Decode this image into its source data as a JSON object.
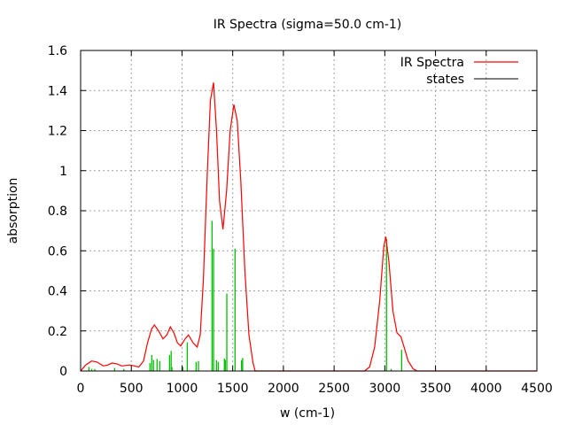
{
  "chart_data": {
    "type": "line",
    "title": "IR Spectra (sigma=50.0 cm-1)",
    "xlabel": "w (cm-1)",
    "ylabel": "absorption",
    "xlim": [
      0,
      4500
    ],
    "ylim": [
      0,
      1.6
    ],
    "xticks": [
      0,
      500,
      1000,
      1500,
      2000,
      2500,
      3000,
      3500,
      4000,
      4500
    ],
    "yticks": [
      0,
      0.2,
      0.4,
      0.6,
      0.8,
      1,
      1.2,
      1.4,
      1.6
    ],
    "ytick_labels": [
      "0",
      "0.2",
      "0.4",
      "0.6",
      "0.8",
      "1",
      "1.2",
      "1.4",
      "1.6"
    ],
    "grid": true,
    "legend_position": "top-right",
    "series": [
      {
        "name": "IR Spectra",
        "kind": "line",
        "color": "#ff0000",
        "x": [
          0,
          50,
          108,
          160,
          224,
          270,
          312,
          360,
          406,
          450,
          486,
          530,
          574,
          620,
          660,
          700,
          728,
          770,
          813,
          850,
          885,
          920,
          955,
          987,
          1030,
          1063,
          1110,
          1150,
          1180,
          1210,
          1250,
          1280,
          1311,
          1340,
          1370,
          1404,
          1440,
          1475,
          1512,
          1545,
          1580,
          1620,
          1660,
          1700,
          1721,
          2800,
          2850,
          2900,
          2950,
          2990,
          3010,
          3040,
          3080,
          3120,
          3160,
          3190,
          3230,
          3280,
          3320,
          4500
        ],
        "y": [
          0,
          0.03,
          0.05,
          0.045,
          0.025,
          0.03,
          0.04,
          0.035,
          0.025,
          0.028,
          0.03,
          0.025,
          0.02,
          0.05,
          0.14,
          0.21,
          0.23,
          0.2,
          0.16,
          0.18,
          0.22,
          0.19,
          0.14,
          0.125,
          0.16,
          0.18,
          0.14,
          0.12,
          0.18,
          0.45,
          1.0,
          1.35,
          1.44,
          1.2,
          0.85,
          0.707,
          0.9,
          1.2,
          1.33,
          1.25,
          0.95,
          0.5,
          0.18,
          0.04,
          0,
          0,
          0.02,
          0.12,
          0.35,
          0.62,
          0.67,
          0.55,
          0.3,
          0.19,
          0.17,
          0.12,
          0.05,
          0.01,
          0,
          0
        ]
      },
      {
        "name": "states",
        "kind": "impulses",
        "color": "#00c000",
        "x": [
          82,
          110,
          140,
          335,
          425,
          684,
          702,
          719,
          754,
          780,
          877,
          893,
          900,
          1008,
          1052,
          1139,
          1162,
          1296,
          1311,
          1340,
          1357,
          1418,
          1427,
          1442,
          1523,
          1587,
          1598,
          3017,
          3063,
          3166
        ],
        "y": [
          0.02,
          0.01,
          0.01,
          0.015,
          0.01,
          0.04,
          0.08,
          0.055,
          0.06,
          0.05,
          0.08,
          0.1,
          0.02,
          0.02,
          0.143,
          0.045,
          0.05,
          0.75,
          0.61,
          0.054,
          0.045,
          0.062,
          0.055,
          0.386,
          0.61,
          0.054,
          0.065,
          0.66,
          0.01,
          0.106
        ]
      }
    ]
  }
}
